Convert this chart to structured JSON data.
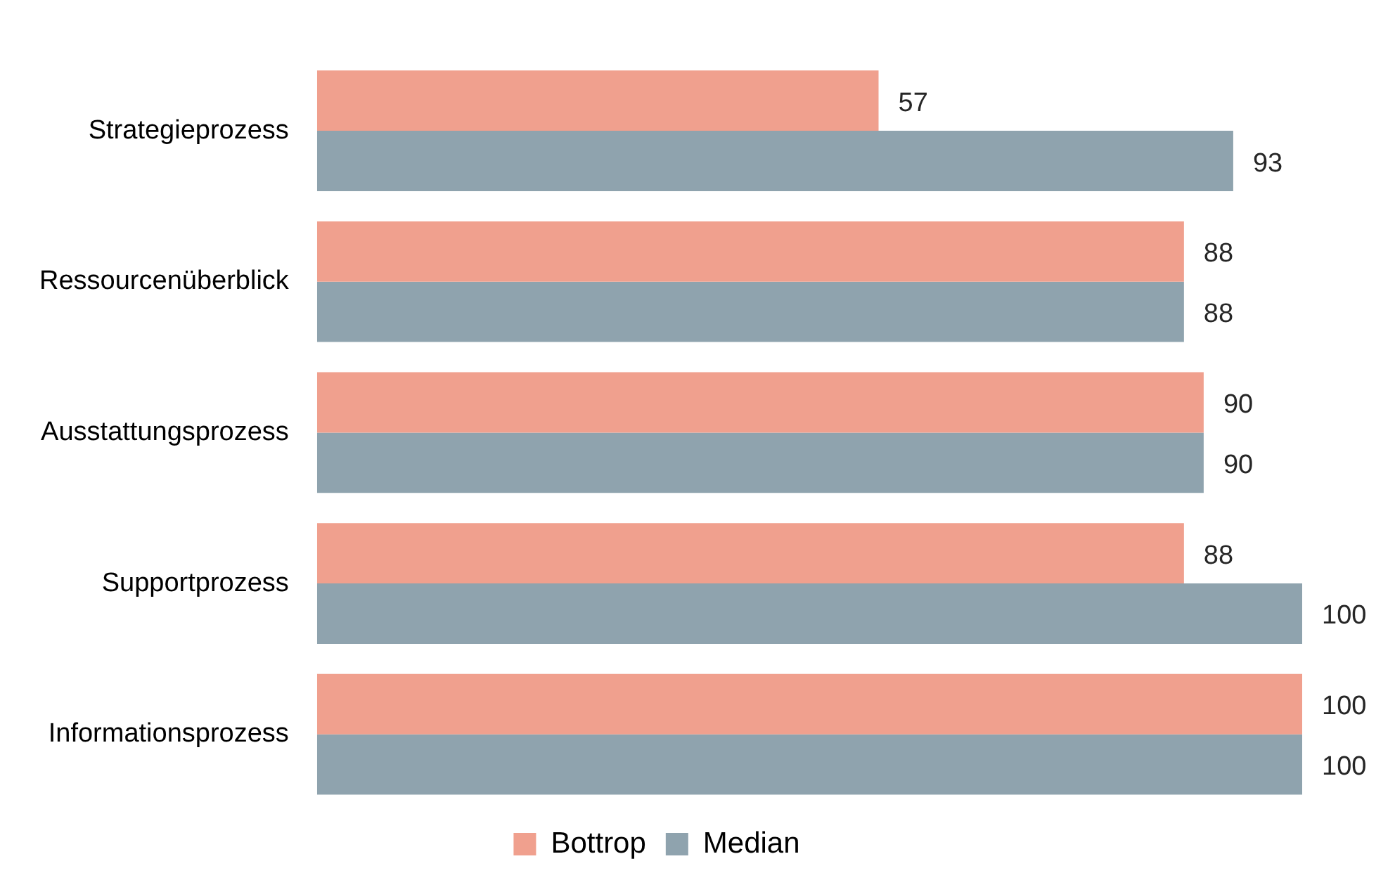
{
  "chart_data": {
    "type": "bar",
    "orientation": "horizontal",
    "categories": [
      "Strategieprozess",
      "Ressourcenüberblick",
      "Ausstattungsprozess",
      "Supportprozess",
      "Informationsprozess"
    ],
    "series": [
      {
        "name": "Bottrop",
        "color": "#f0a08e",
        "values": [
          57,
          88,
          90,
          88,
          100
        ]
      },
      {
        "name": "Median",
        "color": "#8fa3ae",
        "values": [
          93,
          88,
          90,
          100,
          100
        ]
      }
    ],
    "xlim": [
      0,
      100
    ],
    "data_labels": true,
    "legend": "bottom",
    "grid": false,
    "tick_labels": "y"
  }
}
